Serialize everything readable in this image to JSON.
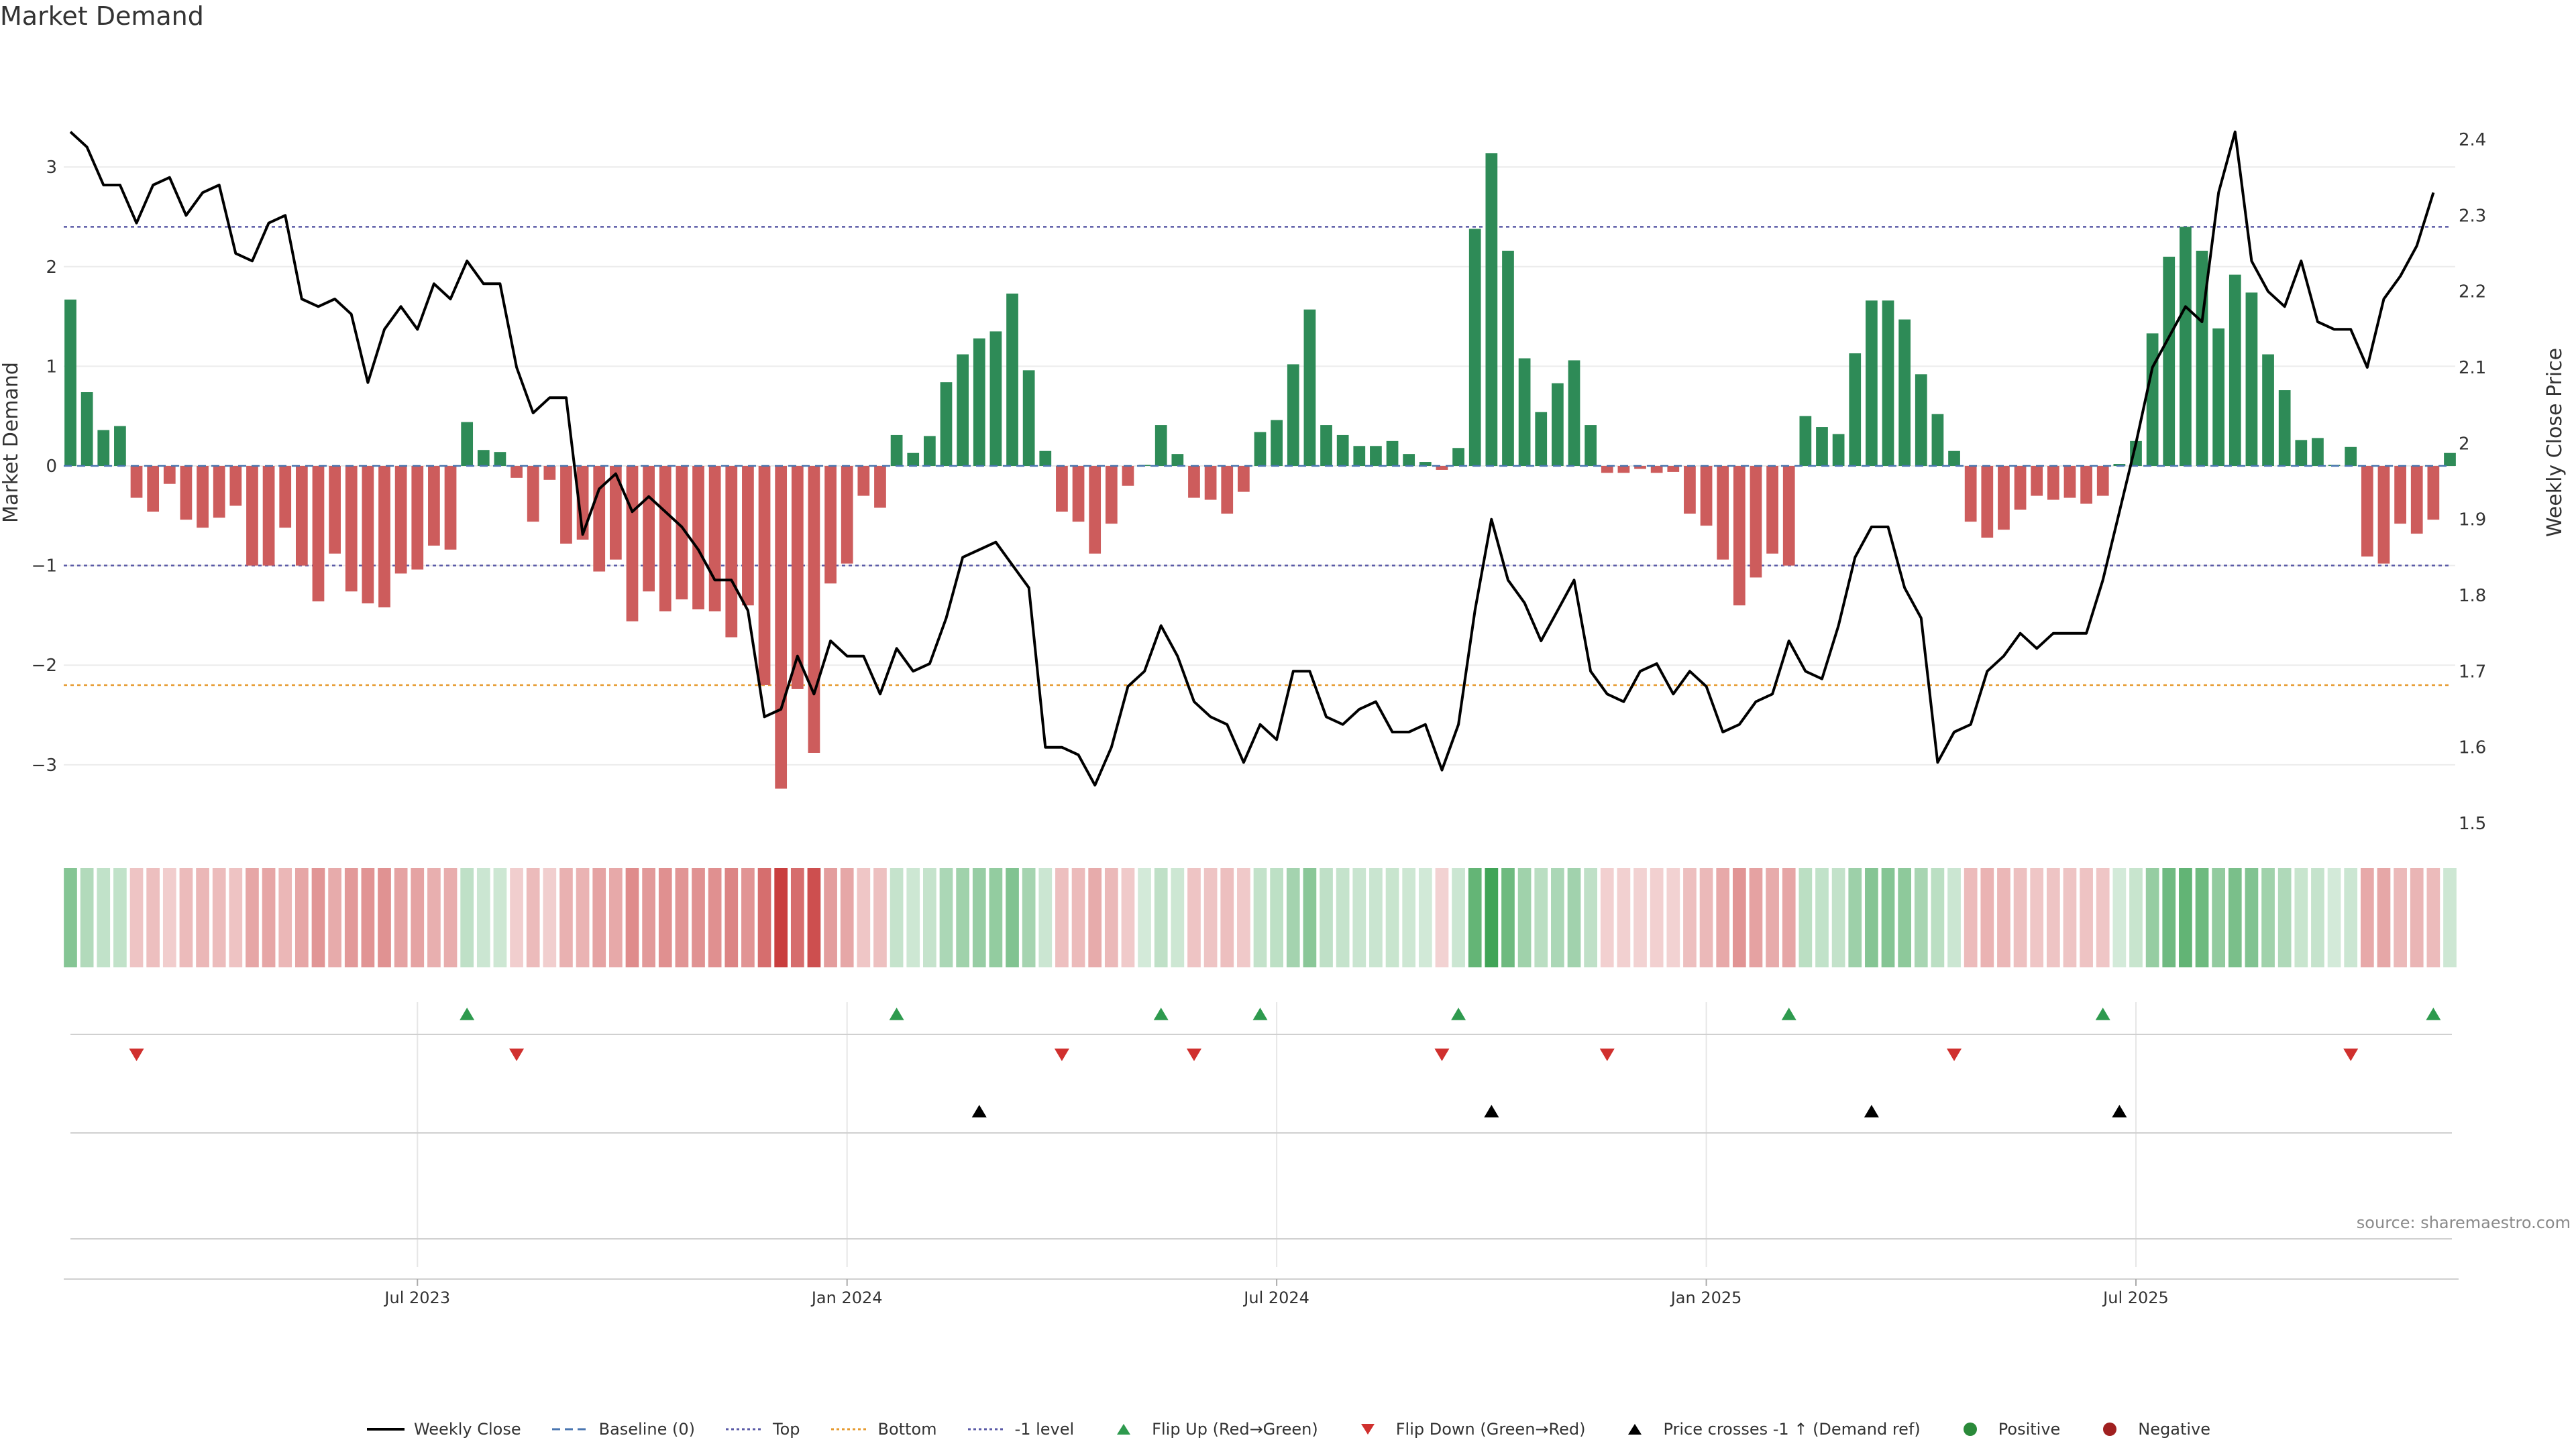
{
  "title": "Market Demand",
  "source": "source: sharemaestro.com",
  "colors": {
    "positive": "#2e8b57",
    "negative": "#cd5c5c",
    "price": "#000000",
    "top_line": "#5a5aa6",
    "bottom_line": "#e69a2e",
    "minus1_line": "#5a5aa6",
    "baseline": "#4a76b0",
    "flip_up": "#2e9a4e",
    "flip_down": "#d0302e",
    "cross": "#000000",
    "legend_positive": "#2a8a3a",
    "legend_negative": "#a02020"
  },
  "chart_data": {
    "type": "bar+line",
    "title": "Market Demand",
    "ylabel": "Market Demand",
    "y2label": "Weekly Close Price",
    "ylim": [
      -3.6,
      3.6
    ],
    "y2lim": [
      1.5,
      2.46
    ],
    "yticks": [
      3,
      2,
      1,
      0,
      -1,
      -2,
      -3
    ],
    "ytick_labels": [
      "3",
      "2",
      "1",
      "0",
      "−1",
      "−2",
      "−3"
    ],
    "y2ticks": [
      2.4,
      2.3,
      2.2,
      2.1,
      2.0,
      1.9,
      1.8,
      1.7,
      1.6,
      1.5
    ],
    "y2tick_labels": [
      "2.4",
      "2.3",
      "2.2",
      "2.1",
      "2",
      "1.9",
      "1.8",
      "1.7",
      "1.6",
      "1.5"
    ],
    "xticks": [
      {
        "label": "Jul 2023",
        "week": 21
      },
      {
        "label": "Jan 2024",
        "week": 47
      },
      {
        "label": "Jul 2024",
        "week": 73
      },
      {
        "label": "Jan 2025",
        "week": 99
      },
      {
        "label": "Jul 2025",
        "week": 125
      }
    ],
    "levels": {
      "top": 2.4,
      "bottom": -2.2,
      "minus1": -1,
      "baseline": 0
    },
    "demand": [
      1.67,
      0.74,
      0.36,
      0.4,
      -0.32,
      -0.46,
      -0.18,
      -0.54,
      -0.62,
      -0.52,
      -0.4,
      -1.0,
      -1.0,
      -0.62,
      -1.0,
      -1.36,
      -0.88,
      -1.26,
      -1.38,
      -1.42,
      -1.08,
      -1.04,
      -0.8,
      -0.84,
      0.44,
      0.16,
      0.14,
      -0.12,
      -0.56,
      -0.14,
      -0.78,
      -0.74,
      -1.06,
      -0.94,
      -1.56,
      -1.26,
      -1.46,
      -1.34,
      -1.44,
      -1.46,
      -1.72,
      -1.4,
      -2.2,
      -3.24,
      -2.24,
      -2.88,
      -1.18,
      -0.98,
      -0.3,
      -0.42,
      0.31,
      0.13,
      0.3,
      0.84,
      1.12,
      1.28,
      1.35,
      1.73,
      0.96,
      0.15,
      -0.46,
      -0.56,
      -0.88,
      -0.58,
      -0.2,
      0.01,
      0.41,
      0.12,
      -0.32,
      -0.34,
      -0.48,
      -0.26,
      0.34,
      0.46,
      1.02,
      1.57,
      0.41,
      0.31,
      0.2,
      0.2,
      0.25,
      0.12,
      0.04,
      -0.04,
      0.18,
      2.38,
      3.14,
      2.16,
      1.08,
      0.54,
      0.83,
      1.06,
      0.41,
      -0.07,
      -0.07,
      -0.03,
      -0.07,
      -0.06,
      -0.48,
      -0.6,
      -0.94,
      -1.4,
      -1.12,
      -0.88,
      -1.0,
      0.5,
      0.39,
      0.32,
      1.13,
      1.66,
      1.66,
      1.47,
      0.92,
      0.52,
      0.15,
      -0.56,
      -0.72,
      -0.64,
      -0.44,
      -0.3,
      -0.34,
      -0.32,
      -0.38,
      -0.3,
      0.02,
      0.25,
      1.33,
      2.1,
      2.4,
      2.16,
      1.38,
      1.92,
      1.74,
      1.12,
      0.76,
      0.26,
      0.28,
      0.01,
      0.19,
      -0.91,
      -0.98,
      -0.58,
      -0.68,
      -0.54,
      0.13
    ],
    "price": [
      2.41,
      2.39,
      2.34,
      2.34,
      2.29,
      2.34,
      2.35,
      2.3,
      2.33,
      2.34,
      2.25,
      2.24,
      2.29,
      2.3,
      2.19,
      2.18,
      2.19,
      2.17,
      2.08,
      2.15,
      2.18,
      2.15,
      2.21,
      2.19,
      2.24,
      2.21,
      2.21,
      2.1,
      2.04,
      2.06,
      2.06,
      1.88,
      1.94,
      1.96,
      1.91,
      1.93,
      1.91,
      1.89,
      1.86,
      1.82,
      1.82,
      1.78,
      1.64,
      1.65,
      1.72,
      1.67,
      1.74,
      1.72,
      1.72,
      1.67,
      1.73,
      1.7,
      1.71,
      1.77,
      1.85,
      1.86,
      1.87,
      1.84,
      1.81,
      1.6,
      1.6,
      1.59,
      1.55,
      1.6,
      1.68,
      1.7,
      1.76,
      1.72,
      1.66,
      1.64,
      1.63,
      1.58,
      1.63,
      1.61,
      1.7,
      1.7,
      1.64,
      1.63,
      1.65,
      1.66,
      1.62,
      1.62,
      1.63,
      1.57,
      1.63,
      1.78,
      1.9,
      1.82,
      1.79,
      1.74,
      1.78,
      1.82,
      1.7,
      1.67,
      1.66,
      1.7,
      1.71,
      1.67,
      1.7,
      1.68,
      1.62,
      1.63,
      1.66,
      1.67,
      1.74,
      1.7,
      1.69,
      1.76,
      1.85,
      1.89,
      1.89,
      1.81,
      1.77,
      1.58,
      1.62,
      1.63,
      1.7,
      1.72,
      1.75,
      1.73,
      1.75,
      1.75,
      1.75,
      1.82,
      1.91,
      2.0,
      2.1,
      2.14,
      2.18,
      2.16,
      2.33,
      2.41,
      2.24,
      2.2,
      2.18,
      2.24,
      2.16,
      2.15,
      2.15,
      2.1,
      2.19,
      2.22,
      2.26,
      2.33
    ],
    "flip_up_weeks": [
      24,
      50,
      66,
      72,
      84,
      104,
      123,
      143
    ],
    "flip_down_weeks": [
      4,
      27,
      60,
      68,
      83,
      93,
      114,
      138
    ],
    "price_cross_weeks": [
      55,
      86,
      109,
      124
    ]
  },
  "legend": [
    {
      "label": "Weekly Close",
      "symbol": "line",
      "color_key": "price"
    },
    {
      "label": "Baseline (0)",
      "symbol": "dash",
      "color_key": "baseline"
    },
    {
      "label": "Top",
      "symbol": "dot",
      "color_key": "top_line"
    },
    {
      "label": "Bottom",
      "symbol": "dot",
      "color_key": "bottom_line"
    },
    {
      "label": "-1 level",
      "symbol": "dot",
      "color_key": "minus1_line"
    },
    {
      "label": "Flip Up (Red→Green)",
      "symbol": "tri-up",
      "color_key": "flip_up"
    },
    {
      "label": "Flip Down (Green→Red)",
      "symbol": "tri-down",
      "color_key": "flip_down"
    },
    {
      "label": "Price crosses -1 ↑ (Demand ref)",
      "symbol": "tri-up",
      "color_key": "cross"
    },
    {
      "label": "Positive",
      "symbol": "circle",
      "color_key": "legend_positive"
    },
    {
      "label": "Negative",
      "symbol": "circle",
      "color_key": "legend_negative"
    }
  ]
}
